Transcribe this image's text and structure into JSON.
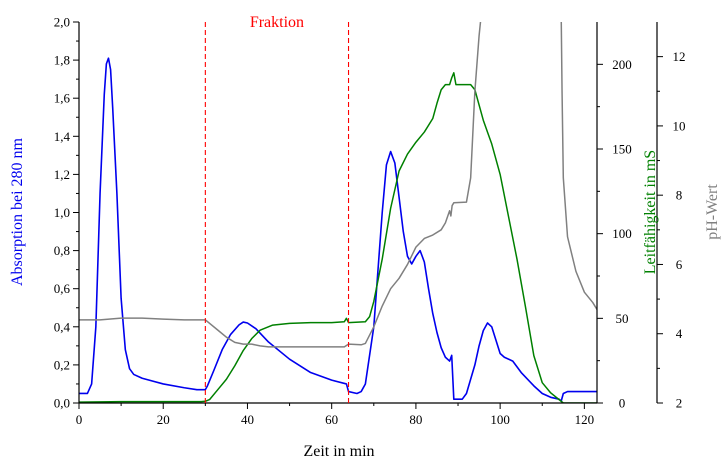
{
  "chart_data": {
    "type": "line",
    "title": "",
    "xlabel": "Zeit in min",
    "xlim": [
      0,
      123
    ],
    "x_ticks": [
      0,
      20,
      40,
      60,
      80,
      100,
      120
    ],
    "x_minor_step": 10,
    "grid": false,
    "legend": "none",
    "axes": {
      "left": {
        "label": "Absorption bei 280 nm",
        "color": "#0000ee",
        "lim": [
          0,
          2.0
        ],
        "ticks": [
          "0,0",
          "0,2",
          "0,4",
          "0,6",
          "0,8",
          "1,0",
          "1,2",
          "1,4",
          "1,6",
          "1,8",
          "2,0"
        ]
      },
      "right1": {
        "label": "Leitfähigkeit in mS",
        "color": "#008000",
        "lim": [
          0,
          225
        ],
        "ticks": [
          "0",
          "50",
          "100",
          "150",
          "200"
        ]
      },
      "right2": {
        "label": "pH-Wert",
        "color": "#808080",
        "lim": [
          2,
          13
        ],
        "ticks": [
          "2",
          "4",
          "6",
          "8",
          "10",
          "12"
        ]
      }
    },
    "annotations": [
      {
        "text": "Fraktion",
        "color": "#ff0000",
        "x_start": 30,
        "x_end": 64
      }
    ],
    "series": [
      {
        "axis": "left",
        "color": "#0000ee",
        "points": [
          [
            0,
            0.05
          ],
          [
            1,
            0.05
          ],
          [
            2,
            0.05
          ],
          [
            3,
            0.1
          ],
          [
            4,
            0.4
          ],
          [
            5,
            1.1
          ],
          [
            6,
            1.62
          ],
          [
            6.5,
            1.78
          ],
          [
            7,
            1.81
          ],
          [
            7.5,
            1.75
          ],
          [
            8,
            1.55
          ],
          [
            9,
            1.1
          ],
          [
            10,
            0.55
          ],
          [
            11,
            0.28
          ],
          [
            12,
            0.18
          ],
          [
            13,
            0.15
          ],
          [
            15,
            0.13
          ],
          [
            20,
            0.1
          ],
          [
            25,
            0.08
          ],
          [
            28,
            0.07
          ],
          [
            30,
            0.07
          ],
          [
            30.5,
            0.09
          ],
          [
            32,
            0.17
          ],
          [
            34,
            0.28
          ],
          [
            36,
            0.36
          ],
          [
            38,
            0.41
          ],
          [
            39,
            0.425
          ],
          [
            40,
            0.42
          ],
          [
            42,
            0.39
          ],
          [
            45,
            0.32
          ],
          [
            50,
            0.23
          ],
          [
            55,
            0.16
          ],
          [
            60,
            0.12
          ],
          [
            63.5,
            0.1
          ],
          [
            64,
            0.06
          ],
          [
            66,
            0.05
          ],
          [
            67,
            0.06
          ],
          [
            68,
            0.1
          ],
          [
            70,
            0.4
          ],
          [
            71,
            0.7
          ],
          [
            72,
            1.0
          ],
          [
            73,
            1.25
          ],
          [
            74,
            1.32
          ],
          [
            75,
            1.26
          ],
          [
            76,
            1.08
          ],
          [
            77,
            0.9
          ],
          [
            78,
            0.77
          ],
          [
            79,
            0.73
          ],
          [
            80,
            0.77
          ],
          [
            81,
            0.8
          ],
          [
            82,
            0.74
          ],
          [
            83,
            0.6
          ],
          [
            84,
            0.47
          ],
          [
            85,
            0.37
          ],
          [
            86,
            0.29
          ],
          [
            87,
            0.24
          ],
          [
            88,
            0.22
          ],
          [
            88.5,
            0.25
          ],
          [
            89,
            0.02
          ],
          [
            90,
            0.02
          ],
          [
            91,
            0.02
          ],
          [
            92,
            0.05
          ],
          [
            94,
            0.2
          ],
          [
            95,
            0.3
          ],
          [
            96,
            0.38
          ],
          [
            97,
            0.42
          ],
          [
            98,
            0.4
          ],
          [
            99,
            0.33
          ],
          [
            100,
            0.26
          ],
          [
            101,
            0.24
          ],
          [
            103,
            0.22
          ],
          [
            105,
            0.16
          ],
          [
            108,
            0.09
          ],
          [
            110,
            0.05
          ],
          [
            112,
            0.03
          ],
          [
            114,
            0.02
          ],
          [
            114.5,
            0.01
          ],
          [
            115,
            0.05
          ],
          [
            116,
            0.06
          ],
          [
            123,
            0.06
          ]
        ]
      },
      {
        "axis": "right1",
        "color": "#008000",
        "points": [
          [
            0,
            0.5
          ],
          [
            10,
            0.8
          ],
          [
            20,
            0.8
          ],
          [
            25,
            0.8
          ],
          [
            29,
            0.8
          ],
          [
            30,
            1
          ],
          [
            31,
            2
          ],
          [
            33,
            8
          ],
          [
            35,
            14
          ],
          [
            37,
            22
          ],
          [
            39,
            31
          ],
          [
            41,
            38
          ],
          [
            43,
            43
          ],
          [
            46,
            46
          ],
          [
            50,
            47
          ],
          [
            55,
            47.5
          ],
          [
            60,
            47.5
          ],
          [
            63,
            48
          ],
          [
            63.5,
            50
          ],
          [
            64,
            47.5
          ],
          [
            68,
            48
          ],
          [
            69,
            51
          ],
          [
            70,
            60
          ],
          [
            72,
            85
          ],
          [
            74,
            115
          ],
          [
            76,
            137
          ],
          [
            78,
            147
          ],
          [
            80,
            154
          ],
          [
            82,
            160
          ],
          [
            84,
            168
          ],
          [
            85,
            177
          ],
          [
            86,
            185
          ],
          [
            87,
            188
          ],
          [
            88,
            188
          ],
          [
            88.5,
            192
          ],
          [
            89,
            195
          ],
          [
            89.5,
            188
          ],
          [
            90,
            188
          ],
          [
            92,
            188
          ],
          [
            93,
            188
          ],
          [
            94,
            185
          ],
          [
            95,
            176
          ],
          [
            96,
            167
          ],
          [
            97,
            160
          ],
          [
            98,
            153
          ],
          [
            100,
            135
          ],
          [
            102,
            110
          ],
          [
            104,
            85
          ],
          [
            106,
            57
          ],
          [
            108,
            28
          ],
          [
            110,
            12
          ],
          [
            112,
            6
          ],
          [
            114,
            2
          ],
          [
            115,
            0
          ],
          [
            123,
            0
          ]
        ]
      },
      {
        "axis": "right2",
        "color": "#808080",
        "points": [
          [
            0,
            4.4
          ],
          [
            5,
            4.4
          ],
          [
            10,
            4.45
          ],
          [
            15,
            4.45
          ],
          [
            20,
            4.42
          ],
          [
            25,
            4.4
          ],
          [
            30,
            4.4
          ],
          [
            31,
            4.3
          ],
          [
            33,
            4.1
          ],
          [
            35,
            3.9
          ],
          [
            37,
            3.75
          ],
          [
            39,
            3.7
          ],
          [
            41,
            3.7
          ],
          [
            43,
            3.65
          ],
          [
            45,
            3.62
          ],
          [
            50,
            3.62
          ],
          [
            55,
            3.62
          ],
          [
            60,
            3.62
          ],
          [
            63,
            3.62
          ],
          [
            64,
            3.7
          ],
          [
            67,
            3.68
          ],
          [
            68,
            3.72
          ],
          [
            70,
            4.2
          ],
          [
            72,
            4.8
          ],
          [
            74,
            5.3
          ],
          [
            76,
            5.6
          ],
          [
            78,
            6.0
          ],
          [
            80,
            6.5
          ],
          [
            82,
            6.75
          ],
          [
            84,
            6.85
          ],
          [
            86,
            7.0
          ],
          [
            87,
            7.2
          ],
          [
            88,
            7.55
          ],
          [
            88.3,
            7.4
          ],
          [
            88.6,
            7.7
          ],
          [
            89,
            7.78
          ],
          [
            92,
            7.8
          ],
          [
            93,
            8.5
          ],
          [
            94,
            11
          ],
          [
            95,
            12.6
          ],
          [
            95.5,
            13.2
          ],
          [
            114.5,
            13.2
          ],
          [
            114.7,
            11
          ],
          [
            115,
            8.5
          ],
          [
            116,
            6.8
          ],
          [
            118,
            5.8
          ],
          [
            120,
            5.2
          ],
          [
            122,
            4.9
          ],
          [
            123,
            4.7
          ]
        ]
      }
    ]
  }
}
